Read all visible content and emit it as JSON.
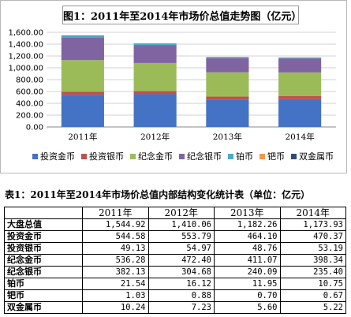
{
  "chart_data": {
    "type": "bar",
    "stacked": true,
    "title": "图1：2011年至2014年市场价总值走势图（亿元）",
    "categories": [
      "2011年",
      "2012年",
      "2013年",
      "2014年"
    ],
    "ylim": [
      0,
      1600
    ],
    "yticks": [
      "0.00",
      "200.00",
      "400.00",
      "600.00",
      "800.00",
      "1,000.00",
      "1,200.00",
      "1,400.00",
      "1,600.00"
    ],
    "grid": true,
    "legend_position": "bottom",
    "series": [
      {
        "name": "投资金币",
        "color": "#4472c4",
        "values": [
          544.58,
          553.79,
          464.1,
          470.37
        ]
      },
      {
        "name": "投资银币",
        "color": "#c0504d",
        "values": [
          49.13,
          54.97,
          48.76,
          53.19
        ]
      },
      {
        "name": "纪念金币",
        "color": "#9bbb59",
        "values": [
          536.28,
          472.4,
          411.07,
          398.34
        ]
      },
      {
        "name": "纪念银币",
        "color": "#8064a2",
        "values": [
          382.13,
          304.68,
          240.09,
          235.4
        ]
      },
      {
        "name": "铂币",
        "color": "#4bacc6",
        "values": [
          21.54,
          16.12,
          11.95,
          10.75
        ]
      },
      {
        "name": "钯币",
        "color": "#f79646",
        "values": [
          1.03,
          0.88,
          0.7,
          0.67
        ]
      },
      {
        "name": "双金属币",
        "color": "#2c4d75",
        "values": [
          10.24,
          7.23,
          5.6,
          5.22
        ]
      }
    ]
  },
  "table": {
    "caption": "表1：2011年至2014年市场价总值内部结构变化统计表（单位：亿元）",
    "headers": [
      "",
      "2011年",
      "2012年",
      "2013年",
      "2014年"
    ],
    "rows": [
      {
        "label": "大盘总值",
        "values": [
          "1,544.92",
          "1,410.06",
          "1,182.26",
          "1,173.93"
        ]
      },
      {
        "label": "投资金币",
        "values": [
          "544.58",
          "553.79",
          "464.10",
          "470.37"
        ]
      },
      {
        "label": "投资银币",
        "values": [
          "49.13",
          "54.97",
          "48.76",
          "53.19"
        ]
      },
      {
        "label": "纪念金币",
        "values": [
          "536.28",
          "472.40",
          "411.07",
          "398.34"
        ]
      },
      {
        "label": "纪念银币",
        "values": [
          "382.13",
          "304.68",
          "240.09",
          "235.40"
        ]
      },
      {
        "label": "铂币",
        "values": [
          "21.54",
          "16.12",
          "11.95",
          "10.75"
        ]
      },
      {
        "label": "钯币",
        "values": [
          "1.03",
          "0.88",
          "0.70",
          "0.67"
        ]
      },
      {
        "label": "双金属币",
        "values": [
          "10.24",
          "7.23",
          "5.60",
          "5.22"
        ]
      }
    ]
  }
}
